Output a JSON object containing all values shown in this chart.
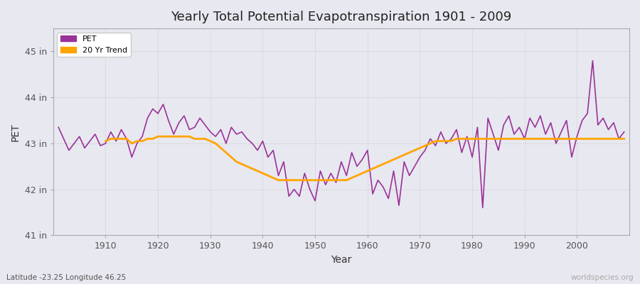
{
  "title": "Yearly Total Potential Evapotranspiration 1901 - 2009",
  "xlabel": "Year",
  "ylabel": "PET",
  "subtitle_left": "Latitude -23.25 Longitude 46.25",
  "subtitle_right": "worldspecies.org",
  "pet_color": "#993399",
  "trend_color": "#FFA500",
  "bg_color": "#e8e8f0",
  "plot_bg_color": "#e8e8f0",
  "ylim": [
    41.0,
    45.5
  ],
  "yticks": [
    41,
    42,
    43,
    44,
    45
  ],
  "ytick_labels": [
    "41 in",
    "42 in",
    "43 in",
    "44 in",
    "45 in"
  ],
  "years": [
    1901,
    1902,
    1903,
    1904,
    1905,
    1906,
    1907,
    1908,
    1909,
    1910,
    1911,
    1912,
    1913,
    1914,
    1915,
    1916,
    1917,
    1918,
    1919,
    1920,
    1921,
    1922,
    1923,
    1924,
    1925,
    1926,
    1927,
    1928,
    1929,
    1930,
    1931,
    1932,
    1933,
    1934,
    1935,
    1936,
    1937,
    1938,
    1939,
    1940,
    1941,
    1942,
    1943,
    1944,
    1945,
    1946,
    1947,
    1948,
    1949,
    1950,
    1951,
    1952,
    1953,
    1954,
    1955,
    1956,
    1957,
    1958,
    1959,
    1960,
    1961,
    1962,
    1963,
    1964,
    1965,
    1966,
    1967,
    1968,
    1969,
    1970,
    1971,
    1972,
    1973,
    1974,
    1975,
    1976,
    1977,
    1978,
    1979,
    1980,
    1981,
    1982,
    1983,
    1984,
    1985,
    1986,
    1987,
    1988,
    1989,
    1990,
    1991,
    1992,
    1993,
    1994,
    1995,
    1996,
    1997,
    1998,
    1999,
    2000,
    2001,
    2002,
    2003,
    2004,
    2005,
    2006,
    2007,
    2008,
    2009
  ],
  "pet_values": [
    43.35,
    43.1,
    42.85,
    43.0,
    43.15,
    42.9,
    43.05,
    43.2,
    42.95,
    43.0,
    43.25,
    43.05,
    43.3,
    43.1,
    42.7,
    43.0,
    43.15,
    43.55,
    43.75,
    43.65,
    43.85,
    43.5,
    43.2,
    43.45,
    43.6,
    43.3,
    43.35,
    43.55,
    43.4,
    43.25,
    43.15,
    43.3,
    43.0,
    43.35,
    43.2,
    43.25,
    43.1,
    43.0,
    42.85,
    43.05,
    42.7,
    42.85,
    42.3,
    42.6,
    41.85,
    42.0,
    41.85,
    42.35,
    42.0,
    41.75,
    42.4,
    42.1,
    42.35,
    42.15,
    42.6,
    42.3,
    42.8,
    42.5,
    42.65,
    42.85,
    41.9,
    42.2,
    42.05,
    41.8,
    42.4,
    41.65,
    42.6,
    42.3,
    42.5,
    42.7,
    42.85,
    43.1,
    42.95,
    43.25,
    43.0,
    43.1,
    43.3,
    42.8,
    43.15,
    42.7,
    43.35,
    41.6,
    43.55,
    43.2,
    42.85,
    43.4,
    43.6,
    43.2,
    43.35,
    43.1,
    43.55,
    43.35,
    43.6,
    43.2,
    43.45,
    43.0,
    43.25,
    43.5,
    42.7,
    43.15,
    43.5,
    43.65,
    44.8,
    43.4,
    43.55,
    43.3,
    43.45,
    43.1,
    43.25
  ],
  "trend_values": [
    null,
    null,
    null,
    null,
    null,
    null,
    null,
    null,
    null,
    43.05,
    43.1,
    43.1,
    43.1,
    43.1,
    43.0,
    43.05,
    43.05,
    43.1,
    43.1,
    43.15,
    43.15,
    43.15,
    43.15,
    43.15,
    43.15,
    43.15,
    43.1,
    43.1,
    43.1,
    43.05,
    43.0,
    42.9,
    42.8,
    42.7,
    42.6,
    42.55,
    42.5,
    42.45,
    42.4,
    42.35,
    42.3,
    42.25,
    42.2,
    42.2,
    42.2,
    42.2,
    42.2,
    42.2,
    42.2,
    42.2,
    42.2,
    42.2,
    42.2,
    42.2,
    42.2,
    42.2,
    42.25,
    42.3,
    42.35,
    42.4,
    42.45,
    42.5,
    42.55,
    42.6,
    42.65,
    42.7,
    42.75,
    42.8,
    42.85,
    42.9,
    42.95,
    43.0,
    43.05,
    43.05,
    43.05,
    43.05,
    43.1,
    43.1,
    43.1,
    43.1,
    43.1,
    43.1,
    43.1,
    43.1,
    43.1,
    43.1,
    43.1,
    43.1,
    43.1,
    43.1,
    43.1,
    43.1,
    43.1,
    43.1,
    43.1,
    43.1,
    43.1,
    43.1,
    43.1,
    43.1,
    43.1,
    43.1,
    43.1,
    43.1,
    43.1,
    43.1,
    43.1,
    43.1,
    43.1
  ]
}
